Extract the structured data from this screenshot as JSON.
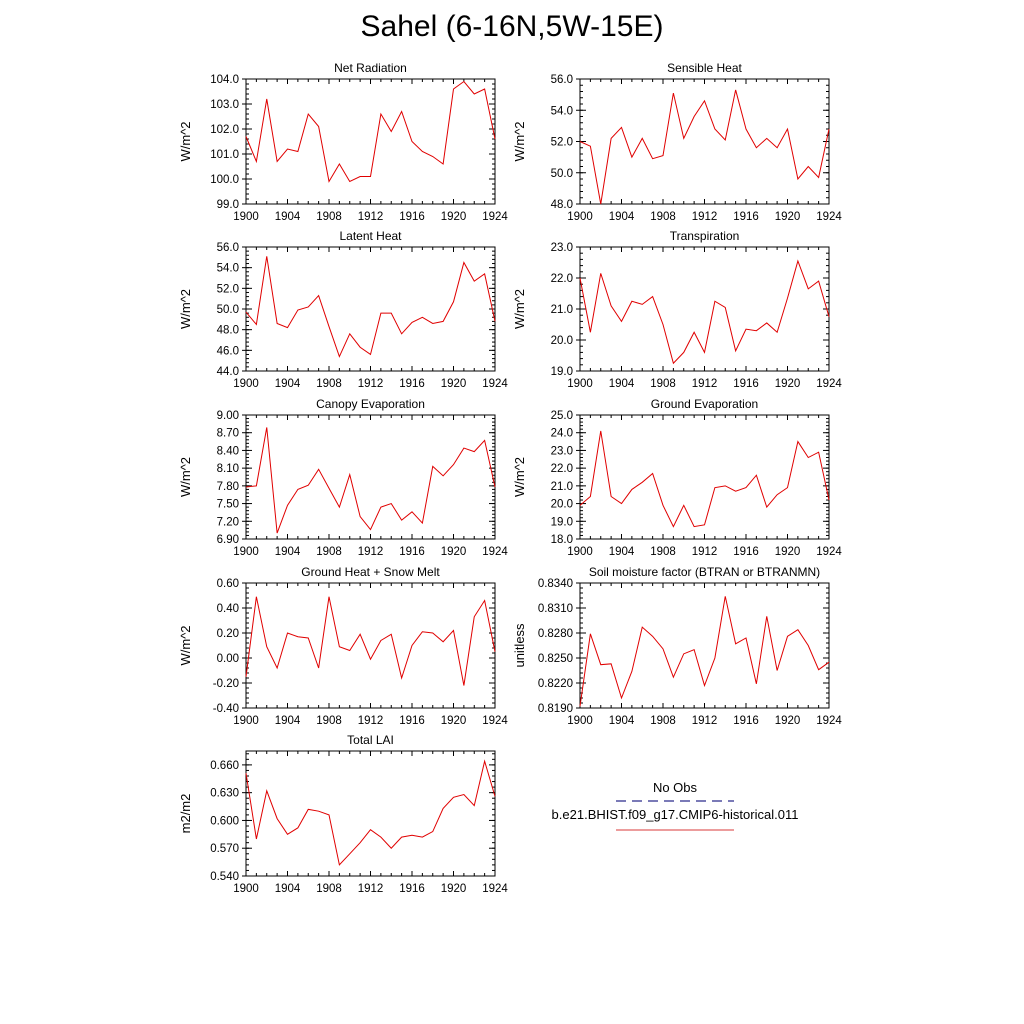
{
  "page": {
    "title": "Sahel (6-16N,5W-15E)"
  },
  "legend": {
    "entries": [
      {
        "label": "No Obs",
        "color": "#2b2b8c",
        "style": "dashed"
      },
      {
        "label": "b.e21.BHIST.f09_g17.CMIP6-historical.011",
        "color": "#e06060",
        "style": "solid"
      }
    ]
  },
  "chart_data": [
    {
      "type": "line",
      "title": "Net Radiation",
      "ylabel": "W/m^2",
      "xlabel": "",
      "xlim": [
        1900,
        1924
      ],
      "ylim": [
        99.0,
        104.0
      ],
      "xticks": [
        1900,
        1904,
        1908,
        1912,
        1916,
        1920,
        1924
      ],
      "yticks": [
        "99.0",
        "100.0",
        "101.0",
        "102.0",
        "103.0",
        "104.0"
      ],
      "color": "#e00000",
      "x": [
        1900,
        1901,
        1902,
        1903,
        1904,
        1905,
        1906,
        1907,
        1908,
        1909,
        1910,
        1911,
        1912,
        1913,
        1914,
        1915,
        1916,
        1917,
        1918,
        1919,
        1920,
        1921,
        1922,
        1923,
        1924
      ],
      "values": [
        101.7,
        100.7,
        103.2,
        100.7,
        101.2,
        101.1,
        102.6,
        102.1,
        99.9,
        100.6,
        99.9,
        100.1,
        100.1,
        102.6,
        101.9,
        102.7,
        101.5,
        101.1,
        100.9,
        100.6,
        103.6,
        103.9,
        103.4,
        103.6,
        101.6
      ]
    },
    {
      "type": "line",
      "title": "Sensible Heat",
      "ylabel": "W/m^2",
      "xlabel": "",
      "xlim": [
        1900,
        1924
      ],
      "ylim": [
        48.0,
        56.0
      ],
      "xticks": [
        1900,
        1904,
        1908,
        1912,
        1916,
        1920,
        1924
      ],
      "yticks": [
        "48.0",
        "50.0",
        "52.0",
        "54.0",
        "56.0"
      ],
      "color": "#e00000",
      "x": [
        1900,
        1901,
        1902,
        1903,
        1904,
        1905,
        1906,
        1907,
        1908,
        1909,
        1910,
        1911,
        1912,
        1913,
        1914,
        1915,
        1916,
        1917,
        1918,
        1919,
        1920,
        1921,
        1922,
        1923,
        1924
      ],
      "values": [
        52.0,
        51.7,
        48.0,
        52.2,
        52.9,
        51.0,
        52.2,
        50.9,
        51.1,
        55.1,
        52.2,
        53.6,
        54.6,
        52.8,
        52.1,
        55.3,
        52.8,
        51.6,
        52.2,
        51.6,
        52.8,
        49.6,
        50.4,
        49.7,
        52.8
      ]
    },
    {
      "type": "line",
      "title": "Latent Heat",
      "ylabel": "W/m^2",
      "xlabel": "",
      "xlim": [
        1900,
        1924
      ],
      "ylim": [
        44.0,
        56.0
      ],
      "xticks": [
        1900,
        1904,
        1908,
        1912,
        1916,
        1920,
        1924
      ],
      "yticks": [
        "44.0",
        "46.0",
        "48.0",
        "50.0",
        "52.0",
        "54.0",
        "56.0"
      ],
      "color": "#e00000",
      "x": [
        1900,
        1901,
        1902,
        1903,
        1904,
        1905,
        1906,
        1907,
        1908,
        1909,
        1910,
        1911,
        1912,
        1913,
        1914,
        1915,
        1916,
        1917,
        1918,
        1919,
        1920,
        1921,
        1922,
        1923,
        1924
      ],
      "values": [
        49.7,
        48.5,
        55.1,
        48.6,
        48.2,
        49.9,
        50.2,
        51.3,
        48.3,
        45.4,
        47.6,
        46.3,
        45.6,
        49.6,
        49.6,
        47.6,
        48.7,
        49.2,
        48.6,
        48.8,
        50.7,
        54.5,
        52.7,
        53.4,
        48.8
      ]
    },
    {
      "type": "line",
      "title": "Transpiration",
      "ylabel": "W/m^2",
      "xlabel": "",
      "xlim": [
        1900,
        1924
      ],
      "ylim": [
        19.0,
        23.0
      ],
      "xticks": [
        1900,
        1904,
        1908,
        1912,
        1916,
        1920,
        1924
      ],
      "yticks": [
        "19.0",
        "20.0",
        "21.0",
        "22.0",
        "23.0"
      ],
      "color": "#e00000",
      "x": [
        1900,
        1901,
        1902,
        1903,
        1904,
        1905,
        1906,
        1907,
        1908,
        1909,
        1910,
        1911,
        1912,
        1913,
        1914,
        1915,
        1916,
        1917,
        1918,
        1919,
        1920,
        1921,
        1922,
        1923,
        1924
      ],
      "values": [
        22.0,
        20.25,
        22.15,
        21.1,
        20.6,
        21.25,
        21.15,
        21.4,
        20.5,
        19.25,
        19.6,
        20.25,
        19.6,
        21.25,
        21.05,
        19.65,
        20.35,
        20.3,
        20.55,
        20.25,
        21.35,
        22.55,
        21.65,
        21.9,
        20.75
      ]
    },
    {
      "type": "line",
      "title": "Canopy Evaporation",
      "ylabel": "W/m^2",
      "xlabel": "",
      "xlim": [
        1900,
        1924
      ],
      "ylim": [
        6.9,
        9.0
      ],
      "xticks": [
        1900,
        1904,
        1908,
        1912,
        1916,
        1920,
        1924
      ],
      "yticks": [
        "6.90",
        "7.20",
        "7.50",
        "7.80",
        "8.10",
        "8.40",
        "8.70",
        "9.00"
      ],
      "color": "#e00000",
      "x": [
        1900,
        1901,
        1902,
        1903,
        1904,
        1905,
        1906,
        1907,
        1908,
        1909,
        1910,
        1911,
        1912,
        1913,
        1914,
        1915,
        1916,
        1917,
        1918,
        1919,
        1920,
        1921,
        1922,
        1923,
        1924
      ],
      "values": [
        7.78,
        7.8,
        8.79,
        7.0,
        7.47,
        7.74,
        7.81,
        8.08,
        7.76,
        7.44,
        7.99,
        7.28,
        7.06,
        7.44,
        7.5,
        7.22,
        7.36,
        7.17,
        8.13,
        7.97,
        8.16,
        8.44,
        8.38,
        8.57,
        7.78
      ]
    },
    {
      "type": "line",
      "title": "Ground Evaporation",
      "ylabel": "W/m^2",
      "xlabel": "",
      "xlim": [
        1900,
        1924
      ],
      "ylim": [
        18.0,
        25.0
      ],
      "xticks": [
        1900,
        1904,
        1908,
        1912,
        1916,
        1920,
        1924
      ],
      "yticks": [
        "18.0",
        "19.0",
        "20.0",
        "21.0",
        "22.0",
        "23.0",
        "24.0",
        "25.0"
      ],
      "color": "#e00000",
      "x": [
        1900,
        1901,
        1902,
        1903,
        1904,
        1905,
        1906,
        1907,
        1908,
        1909,
        1910,
        1911,
        1912,
        1913,
        1914,
        1915,
        1916,
        1917,
        1918,
        1919,
        1920,
        1921,
        1922,
        1923,
        1924
      ],
      "values": [
        19.9,
        20.4,
        24.1,
        20.4,
        20.0,
        20.8,
        21.2,
        21.7,
        19.9,
        18.7,
        19.9,
        18.7,
        18.8,
        20.9,
        21.0,
        20.7,
        20.9,
        21.6,
        19.8,
        20.5,
        20.9,
        23.5,
        22.6,
        22.9,
        20.2
      ]
    },
    {
      "type": "line",
      "title": "Ground Heat + Snow Melt",
      "ylabel": "W/m^2",
      "xlabel": "",
      "xlim": [
        1900,
        1924
      ],
      "ylim": [
        -0.4,
        0.6
      ],
      "xticks": [
        1900,
        1904,
        1908,
        1912,
        1916,
        1920,
        1924
      ],
      "yticks": [
        "-0.40",
        "-0.20",
        "0.00",
        "0.20",
        "0.40",
        "0.60"
      ],
      "color": "#e00000",
      "x": [
        1900,
        1901,
        1902,
        1903,
        1904,
        1905,
        1906,
        1907,
        1908,
        1909,
        1910,
        1911,
        1912,
        1913,
        1914,
        1915,
        1916,
        1917,
        1918,
        1919,
        1920,
        1921,
        1922,
        1923,
        1924
      ],
      "values": [
        -0.15,
        0.49,
        0.09,
        -0.08,
        0.2,
        0.17,
        0.16,
        -0.08,
        0.49,
        0.09,
        0.06,
        0.19,
        -0.01,
        0.14,
        0.19,
        -0.16,
        0.1,
        0.21,
        0.2,
        0.13,
        0.22,
        -0.22,
        0.33,
        0.46,
        0.05
      ]
    },
    {
      "type": "line",
      "title": "Soil moisture factor (BTRAN or BTRANMN)",
      "ylabel": "unitless",
      "xlabel": "",
      "xlim": [
        1900,
        1924
      ],
      "ylim": [
        0.819,
        0.834
      ],
      "xticks": [
        1900,
        1904,
        1908,
        1912,
        1916,
        1920,
        1924
      ],
      "yticks": [
        "0.8190",
        "0.8220",
        "0.8250",
        "0.8280",
        "0.8310",
        "0.8340"
      ],
      "color": "#e00000",
      "x": [
        1900,
        1901,
        1902,
        1903,
        1904,
        1905,
        1906,
        1907,
        1908,
        1909,
        1910,
        1911,
        1912,
        1913,
        1914,
        1915,
        1916,
        1917,
        1918,
        1919,
        1920,
        1921,
        1922,
        1923,
        1924
      ],
      "values": [
        0.8192,
        0.8279,
        0.8242,
        0.8243,
        0.8202,
        0.8234,
        0.8287,
        0.8276,
        0.8261,
        0.8227,
        0.8255,
        0.826,
        0.8217,
        0.825,
        0.8324,
        0.8267,
        0.8274,
        0.8219,
        0.83,
        0.8235,
        0.8276,
        0.8284,
        0.8265,
        0.8236,
        0.8245
      ]
    },
    {
      "type": "line",
      "title": "Total LAI",
      "ylabel": "m2/m2",
      "xlabel": "",
      "xlim": [
        1900,
        1924
      ],
      "ylim": [
        0.54,
        0.675
      ],
      "xticks": [
        1900,
        1904,
        1908,
        1912,
        1916,
        1920,
        1924
      ],
      "yticks": [
        "0.540",
        "0.570",
        "0.600",
        "0.630",
        "0.660"
      ],
      "color": "#e00000",
      "x": [
        1900,
        1901,
        1902,
        1903,
        1904,
        1905,
        1906,
        1907,
        1908,
        1909,
        1910,
        1911,
        1912,
        1913,
        1914,
        1915,
        1916,
        1917,
        1918,
        1919,
        1920,
        1921,
        1922,
        1923,
        1924
      ],
      "values": [
        0.651,
        0.58,
        0.632,
        0.602,
        0.585,
        0.592,
        0.612,
        0.61,
        0.606,
        0.552,
        0.564,
        0.576,
        0.59,
        0.582,
        0.57,
        0.582,
        0.584,
        0.582,
        0.588,
        0.613,
        0.625,
        0.628,
        0.616,
        0.664,
        0.626
      ]
    }
  ]
}
